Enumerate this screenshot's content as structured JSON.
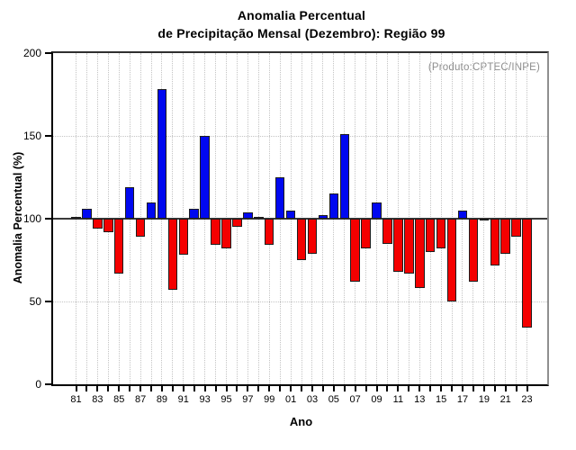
{
  "title": {
    "line1": "Anomalia Percentual",
    "line2": "de Precipitação Mensal (Dezembro): Região 99"
  },
  "annotation": "(Produto:CPTEC/INPE)",
  "chart_data": {
    "type": "bar",
    "title": "Anomalia Percentual de Precipitação Mensal (Dezembro): Região 99",
    "xlabel": "Ano",
    "ylabel": "Anomalia Percentual (%)",
    "ylim": [
      0,
      200
    ],
    "yticks": [
      0,
      50,
      100,
      150,
      200
    ],
    "baseline": 100,
    "grid": true,
    "legend": "none",
    "x_label_step": 2,
    "categories": [
      "81",
      "82",
      "83",
      "84",
      "85",
      "86",
      "87",
      "88",
      "89",
      "90",
      "91",
      "92",
      "93",
      "94",
      "95",
      "96",
      "97",
      "98",
      "99",
      "00",
      "01",
      "02",
      "03",
      "04",
      "05",
      "06",
      "07",
      "08",
      "09",
      "10",
      "11",
      "12",
      "13",
      "14",
      "15",
      "16",
      "17",
      "18",
      "19",
      "20",
      "21",
      "22",
      "23"
    ],
    "values": [
      101,
      106,
      94,
      92,
      67,
      119,
      89,
      110,
      178,
      57,
      78,
      106,
      150,
      84,
      82,
      95,
      104,
      101,
      84,
      125,
      105,
      75,
      79,
      102,
      115,
      151,
      62,
      82,
      110,
      85,
      68,
      67,
      58,
      80,
      82,
      50,
      105,
      62,
      99,
      72,
      79,
      89,
      34
    ],
    "colors": {
      "above_baseline": "#0008f0",
      "below_baseline": "#f40000",
      "bar_border": "#1d1d1d",
      "baseline_line": "#3a3a3a",
      "grid": "#c4c4c4",
      "annotation_text": "#8d8d8d"
    }
  }
}
